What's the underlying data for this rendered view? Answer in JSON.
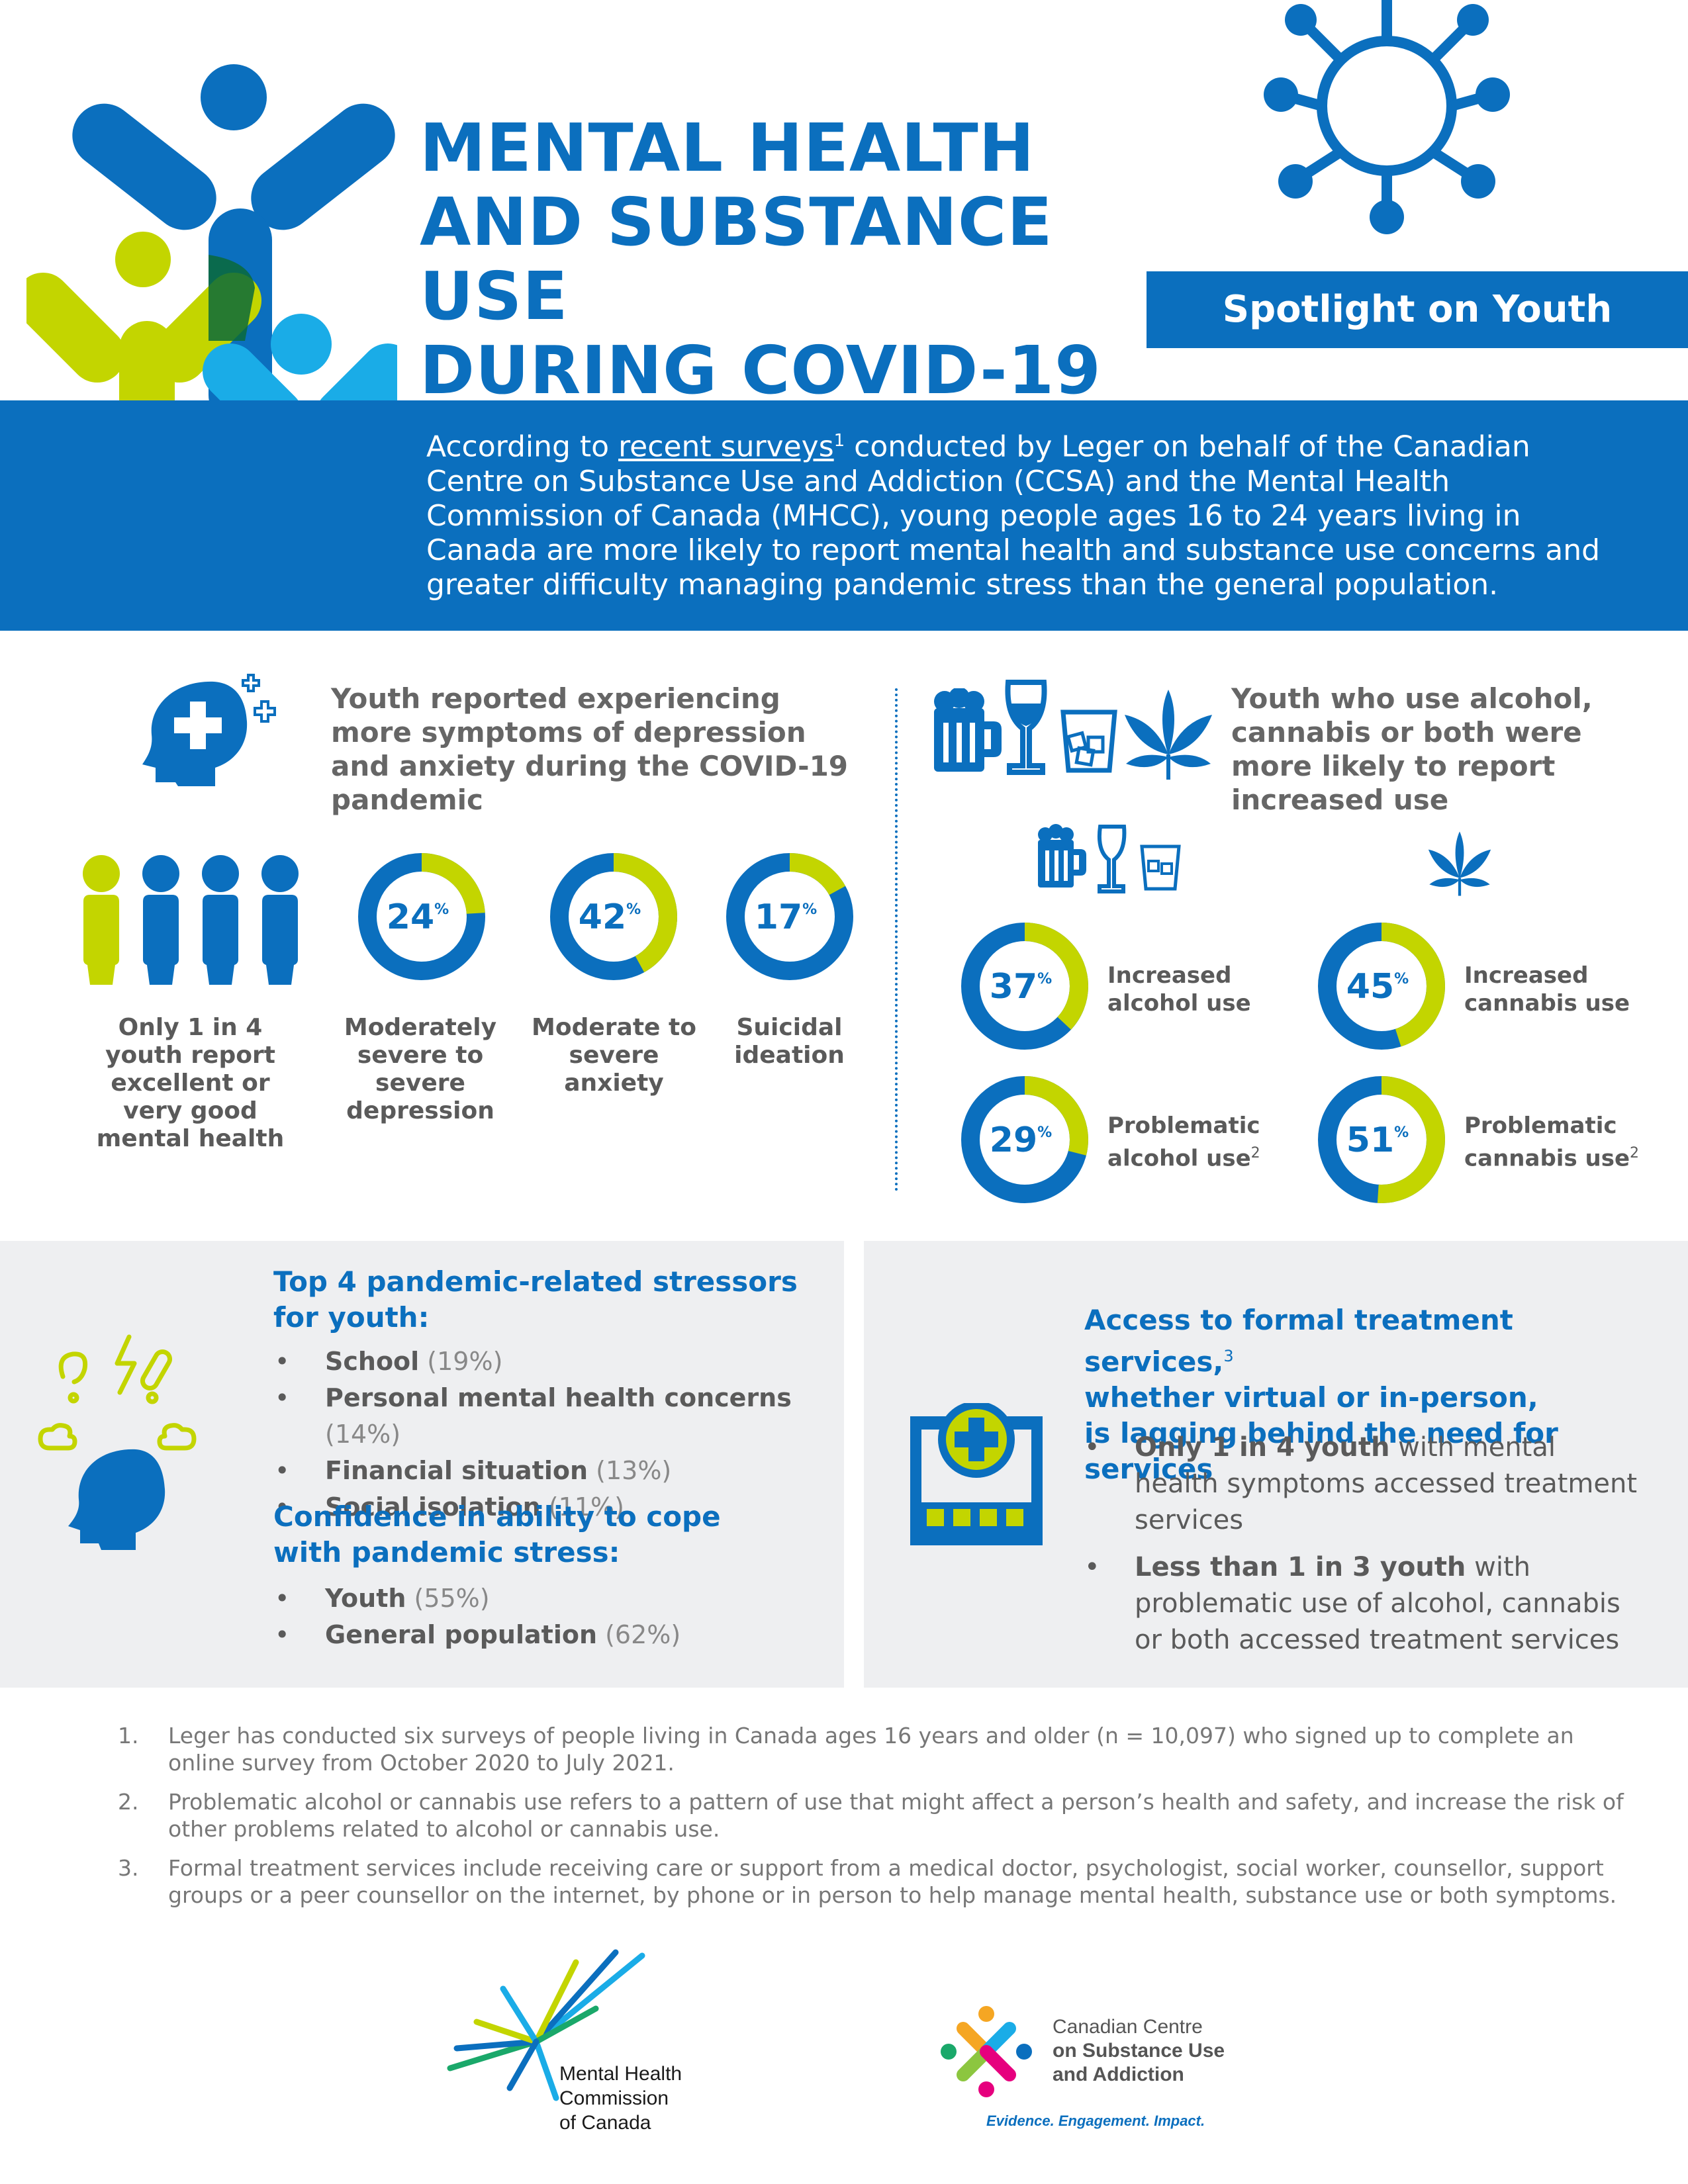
{
  "header": {
    "title_lines": [
      "MENTAL HEALTH",
      "AND SUBSTANCE USE",
      "DURING COVID-19"
    ],
    "spotlight": "Spotlight on Youth"
  },
  "intro": {
    "before_link": "According to ",
    "link_text": "recent surveys",
    "link_sup": "1",
    "after_link": " conducted by Leger on behalf of the Canadian Centre on Substance Use and Addiction (CCSA) and the Mental Health Commission of Canada (MHCC), young people ages 16 to 24 years living in Canada are more likely to report mental health and substance use concerns and greater difficulty managing pandemic stress than the general population."
  },
  "mental": {
    "heading": "Youth reported experiencing more symptoms of depression and anxiety during the COVID-19 pandemic",
    "people_label": "Only 1 in 4 youth report excellent or very good mental health",
    "donuts": [
      {
        "value": 24,
        "label": "Moderately severe to severe depression"
      },
      {
        "value": 42,
        "label": "Moderate to severe anxiety"
      },
      {
        "value": 17,
        "label": "Suicidal ideation"
      }
    ]
  },
  "substance": {
    "heading": "Youth who use alcohol, cannabis or both were more likely to report increased use",
    "donuts": [
      {
        "value": 37,
        "label_1": "Increased",
        "label_2": "alcohol use",
        "sup": ""
      },
      {
        "value": 45,
        "label_1": "Increased",
        "label_2": "cannabis use",
        "sup": ""
      },
      {
        "value": 29,
        "label_1": "Problematic",
        "label_2": "alcohol use",
        "sup": "2"
      },
      {
        "value": 51,
        "label_1": "Problematic",
        "label_2": "cannabis use",
        "sup": "2"
      }
    ]
  },
  "stressors": {
    "heading_1": "Top 4 pandemic-related stressors",
    "heading_2": "for youth:",
    "items": [
      {
        "label": "School",
        "pct": "(19%)"
      },
      {
        "label": "Personal mental health concerns",
        "pct": "(14%)"
      },
      {
        "label": "Financial situation",
        "pct": "(13%)"
      },
      {
        "label": "Social isolation",
        "pct": "(11%)"
      }
    ],
    "cope_heading_1": "Confidence in ability to cope",
    "cope_heading_2": "with pandemic stress:",
    "cope_items": [
      {
        "label": "Youth",
        "pct": "(55%)"
      },
      {
        "label": "General population",
        "pct": "(62%)"
      }
    ]
  },
  "access": {
    "heading_1": "Access to formal treatment services,",
    "heading_sup": "3",
    "heading_2": "whether virtual or in-person,",
    "heading_3": "is lagging behind the need for services",
    "items": [
      {
        "bold": "Only 1 in 4 youth",
        "rest": " with mental health symptoms accessed treatment services"
      },
      {
        "bold": "Less than 1 in 3 youth",
        "rest": " with problematic use of alcohol, cannabis or both accessed treatment services"
      }
    ]
  },
  "footnotes": [
    {
      "num": "1.",
      "text": "Leger has conducted six surveys of people living in Canada ages 16 years and older (n = 10,097) who signed up to complete an online survey from October 2020 to July 2021."
    },
    {
      "num": "2.",
      "text": "Problematic alcohol or cannabis use refers to a pattern of use that might affect a person’s health and safety, and increase the risk of other problems related to alcohol or cannabis use."
    },
    {
      "num": "3.",
      "text": "Formal treatment services include receiving care or support from a medical doctor, psychologist, social worker, counsellor, support groups or a peer counsellor on the internet, by phone or in person to help manage mental health, substance use or both symptoms."
    }
  ],
  "logos": {
    "mhcc_lines": [
      "Mental Health",
      "Commission",
      "of Canada"
    ],
    "ccsa_lines": [
      "Canadian Centre",
      "on Substance Use",
      "and Addiction"
    ],
    "ccsa_tagline": "Evidence. Engagement. Impact."
  },
  "colors": {
    "blue": "#0b6fbe",
    "lime": "#c3d500",
    "light_blue": "#1aace7",
    "panel": "#eeeff1"
  }
}
